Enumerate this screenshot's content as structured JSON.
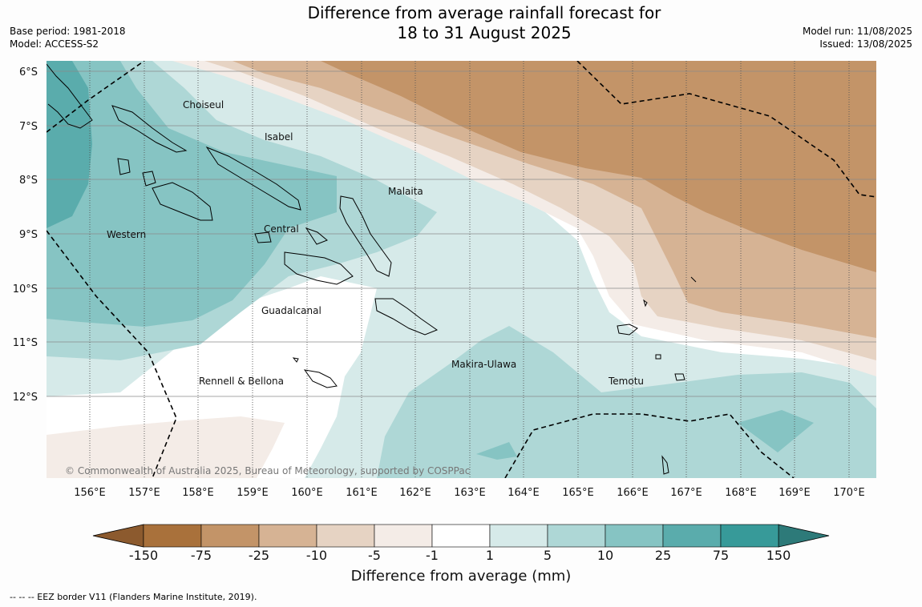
{
  "header": {
    "title_line1": "Difference from average rainfall forecast for",
    "title_line2": "18 to 31 August 2025",
    "base_period": "Base period: 1981-2018",
    "model": "Model: ACCESS-S2",
    "model_run": "Model run: 11/08/2025",
    "issued": "Issued: 13/08/2025"
  },
  "map": {
    "lat_labels": [
      "6°S",
      "7°S",
      "8°S",
      "9°S",
      "10°S",
      "11°S",
      "12°S"
    ],
    "lon_labels": [
      "156°E",
      "157°E",
      "158°E",
      "159°E",
      "160°E",
      "161°E",
      "162°E",
      "163°E",
      "164°E",
      "165°E",
      "166°E",
      "167°E",
      "168°E",
      "169°E",
      "170°E"
    ],
    "region_labels": [
      "Choiseul",
      "Isabel",
      "Malaita",
      "Western",
      "Central",
      "Guadalcanal",
      "Makira-Ulawa",
      "Rennell & Bellona",
      "Temotu"
    ],
    "copyright": "© Commonwealth of Australia 2025, Bureau of Meteorology, supported by COSPPac"
  },
  "colorbar": {
    "ticks": [
      "-150",
      "-75",
      "-25",
      "-10",
      "-5",
      "-1",
      "1",
      "5",
      "10",
      "25",
      "75",
      "150"
    ],
    "colors": [
      "#a9713b",
      "#c39468",
      "#d6b394",
      "#e6d3c3",
      "#f4ece7",
      "#ffffff",
      "#d6eae9",
      "#aed7d6",
      "#86c4c3",
      "#5aacac",
      "#379a99"
    ],
    "under_color": "#8c5a2e",
    "over_color": "#2d7a79",
    "title": "Difference from average (mm)"
  },
  "footnote": "--  --  -- EEZ border V11 (Flanders Marine Institute, 2019)."
}
